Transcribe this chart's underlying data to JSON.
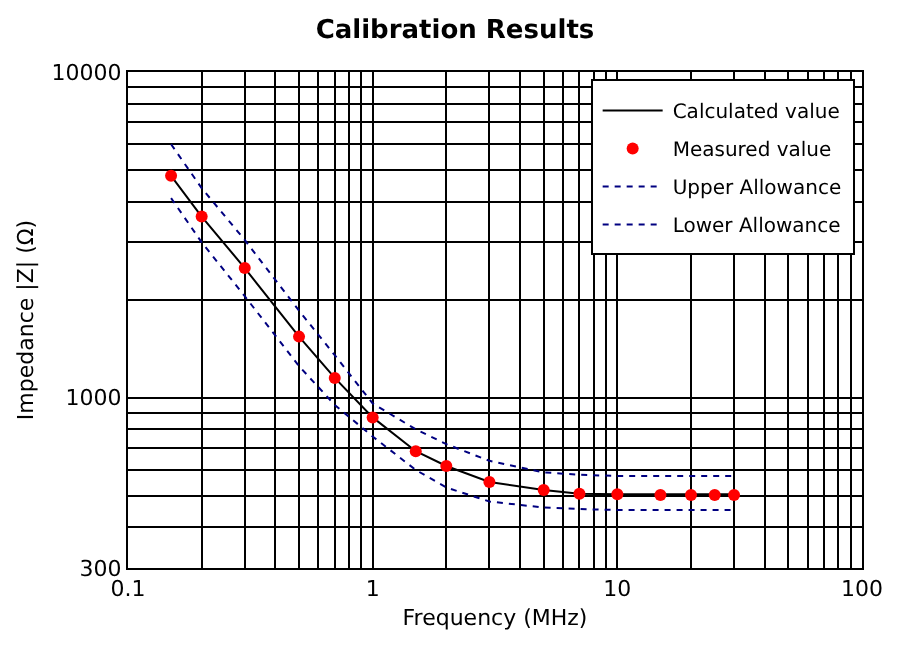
{
  "chart_data": {
    "type": "line",
    "title": "Calibration Results",
    "xlabel": "Frequency (MHz)",
    "ylabel": "Impedance |Z| (Ω)",
    "log": "xy",
    "grid": true,
    "legend": "top right",
    "xlim": [
      0.1,
      100
    ],
    "ylim": [
      300,
      10000
    ],
    "xticks": [
      0.1,
      {
        "value": 0.2,
        "label": null
      },
      {
        "value": 0.3,
        "label": null
      },
      {
        "value": 0.4,
        "label": null
      },
      {
        "value": 0.5,
        "label": null
      },
      {
        "value": 0.6,
        "label": null
      },
      {
        "value": 0.7,
        "label": null
      },
      {
        "value": 0.8,
        "label": null
      },
      {
        "value": 0.9,
        "label": null
      },
      1,
      {
        "value": 2,
        "label": null
      },
      {
        "value": 3,
        "label": null
      },
      {
        "value": 4,
        "label": null
      },
      {
        "value": 5,
        "label": null
      },
      {
        "value": 6,
        "label": null
      },
      {
        "value": 7,
        "label": null
      },
      {
        "value": 8,
        "label": null
      },
      {
        "value": 9,
        "label": null
      },
      10,
      {
        "value": 20,
        "label": null
      },
      {
        "value": 30,
        "label": null
      },
      {
        "value": 40,
        "label": null
      },
      {
        "value": 50,
        "label": null
      },
      {
        "value": 60,
        "label": null
      },
      {
        "value": 70,
        "label": null
      },
      {
        "value": 80,
        "label": null
      },
      {
        "value": 90,
        "label": null
      },
      100
    ],
    "yticks": [
      300,
      {
        "value": 400,
        "label": null
      },
      {
        "value": 500,
        "label": null
      },
      {
        "value": 600,
        "label": null
      },
      {
        "value": 700,
        "label": null
      },
      {
        "value": 800,
        "label": null
      },
      {
        "value": 900,
        "label": null
      },
      1000,
      {
        "value": 2000,
        "label": null
      },
      {
        "value": 3000,
        "label": null
      },
      {
        "value": 4000,
        "label": null
      },
      {
        "value": 5000,
        "label": null
      },
      {
        "value": 6000,
        "label": null
      },
      {
        "value": 7000,
        "label": null
      },
      {
        "value": 8000,
        "label": null
      },
      {
        "value": 9000,
        "label": null
      },
      10000
    ],
    "series": [
      {
        "name": "Calculated value",
        "color": "#000000",
        "line_style": "solid",
        "x": [
          0.15,
          0.2,
          0.3,
          0.5,
          0.7,
          1,
          1.5,
          2,
          3,
          5,
          7,
          10,
          15,
          20,
          25,
          30
        ],
        "values": [
          4800,
          3600,
          2500,
          1540,
          1150,
          870,
          685,
          617,
          551,
          521,
          507,
          505,
          505,
          505,
          505,
          505
        ]
      },
      {
        "name": "Measured value",
        "type": "scatter",
        "color": "#ff0000",
        "marker": "circle",
        "x": [
          0.15,
          0.2,
          0.3,
          0.5,
          0.7,
          1,
          1.5,
          2,
          3,
          5,
          7,
          10,
          15,
          20,
          25,
          30
        ],
        "values": [
          4800,
          3600,
          2500,
          1540,
          1150,
          870,
          685,
          617,
          551,
          521,
          507,
          505,
          503,
          503,
          503,
          503
        ]
      },
      {
        "name": "Upper Allowance",
        "color": "#000080",
        "line_style": "dotted",
        "x": [
          0.15,
          0.2,
          0.3,
          0.5,
          0.7,
          1,
          1.5,
          2,
          3,
          5,
          7,
          10,
          15,
          20,
          30
        ],
        "values": [
          6000,
          4400,
          3050,
          1850,
          1350,
          960,
          800,
          720,
          640,
          590,
          580,
          575,
          575,
          575,
          575
        ]
      },
      {
        "name": "Lower Allowance",
        "color": "#000080",
        "line_style": "dotted",
        "x": [
          0.15,
          0.2,
          0.3,
          0.5,
          0.7,
          1,
          1.5,
          2,
          3,
          5,
          7,
          10,
          15,
          20,
          30
        ],
        "values": [
          4100,
          3000,
          2050,
          1250,
          950,
          760,
          600,
          530,
          480,
          460,
          455,
          452,
          452,
          452,
          452
        ]
      }
    ]
  }
}
